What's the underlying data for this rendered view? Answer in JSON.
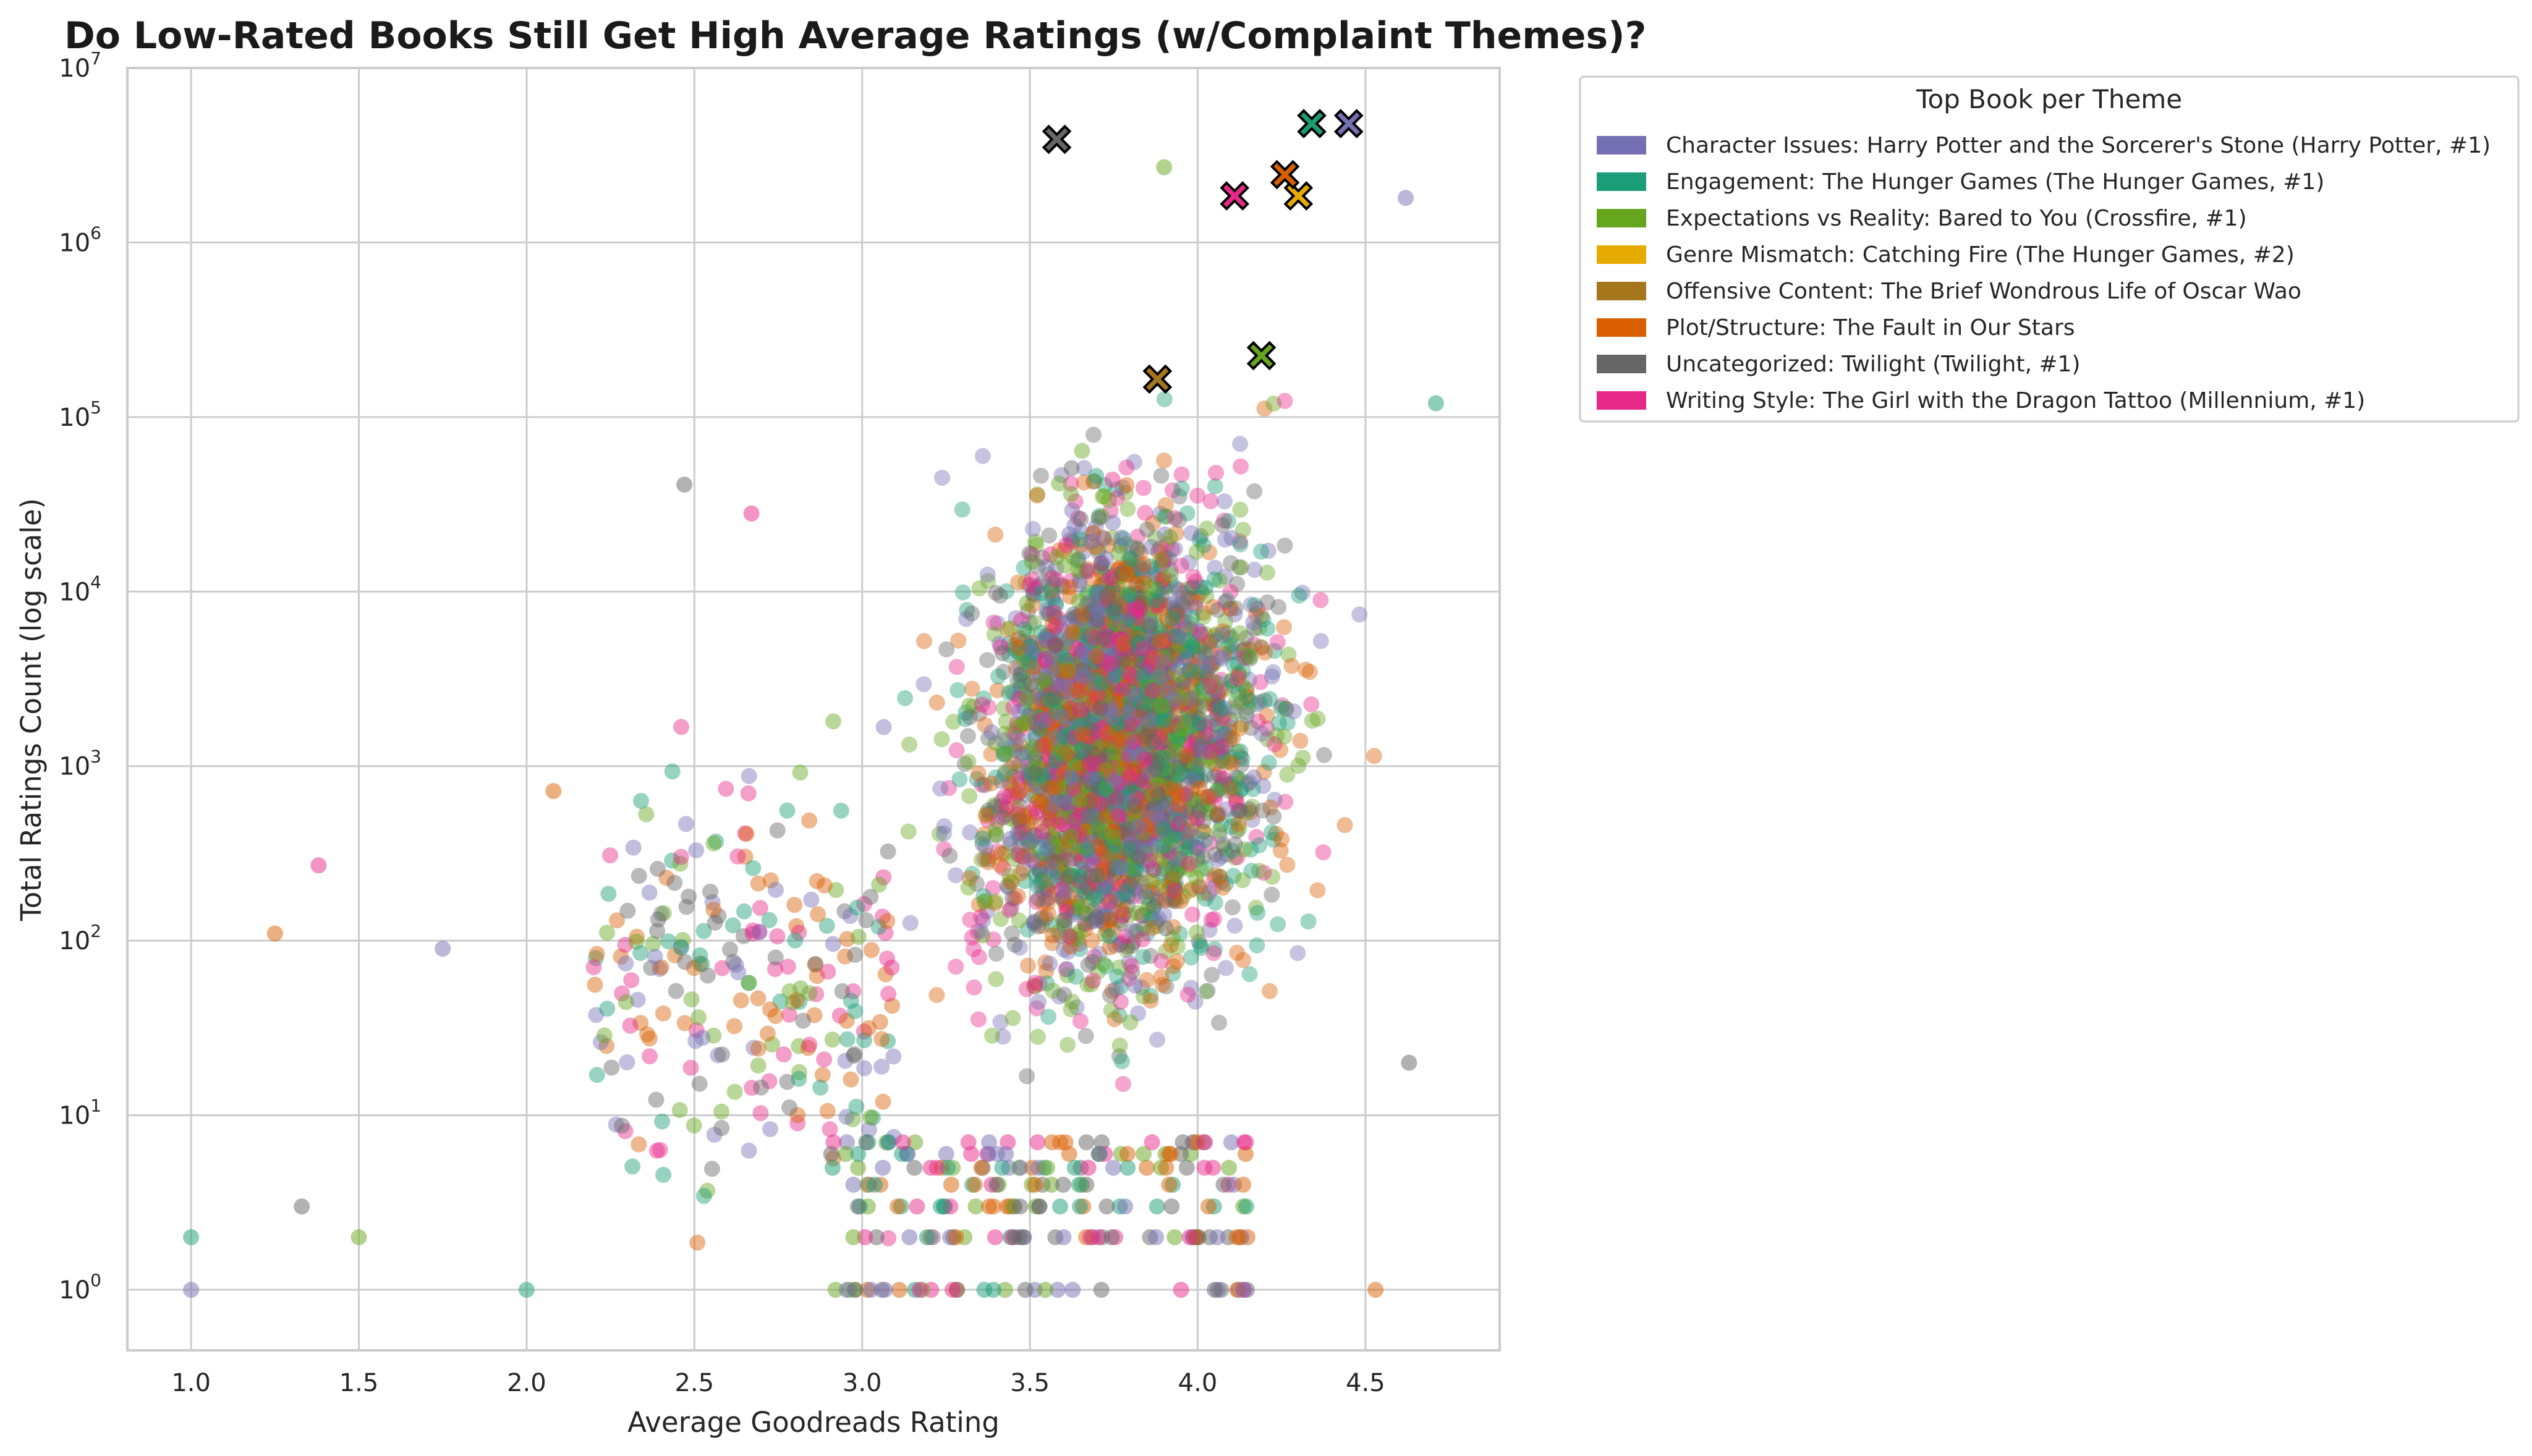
{
  "chart_data": {
    "type": "scatter",
    "title": "Do Low-Rated Books Still Get High Average Ratings (w/Complaint Themes)?",
    "xlabel": "Average Goodreads Rating",
    "ylabel": "Total Ratings Count (log scale)",
    "xlim": [
      0.81,
      4.9
    ],
    "ylim": [
      0.45,
      10000000
    ],
    "y_scale": "log",
    "grid": true,
    "x_ticks": [
      "1.0",
      "1.5",
      "2.0",
      "2.5",
      "3.0",
      "3.5",
      "4.0",
      "4.5"
    ],
    "y_ticks": [
      {
        "base": "10",
        "exp": "0"
      },
      {
        "base": "10",
        "exp": "1"
      },
      {
        "base": "10",
        "exp": "2"
      },
      {
        "base": "10",
        "exp": "3"
      },
      {
        "base": "10",
        "exp": "4"
      },
      {
        "base": "10",
        "exp": "5"
      },
      {
        "base": "10",
        "exp": "6"
      },
      {
        "base": "10",
        "exp": "7"
      }
    ],
    "legend": {
      "title": "Top Book per Theme",
      "placement": "outside upper right"
    },
    "series": [
      {
        "name": "Character Issues: Harry Potter and the Sorcerer's Stone (Harry Potter, #1)",
        "color": "#7570b3",
        "highlight": {
          "x": 4.45,
          "y": 4800000
        }
      },
      {
        "name": "Engagement: The Hunger Games (The Hunger Games, #1)",
        "color": "#1b9e77",
        "highlight": {
          "x": 4.34,
          "y": 4800000
        }
      },
      {
        "name": "Expectations vs Reality: Bared to You (Crossfire, #1)",
        "color": "#66a61e",
        "highlight": {
          "x": 4.19,
          "y": 225000
        }
      },
      {
        "name": "Genre Mismatch: Catching Fire (The Hunger Games, #2)",
        "color": "#e6ab02",
        "highlight": {
          "x": 4.3,
          "y": 1850000
        }
      },
      {
        "name": "Offensive Content: The Brief Wondrous Life of Oscar Wao",
        "color": "#a6761d",
        "highlight": {
          "x": 3.88,
          "y": 165000
        }
      },
      {
        "name": "Plot/Structure: The Fault in Our Stars",
        "color": "#d95f02",
        "highlight": {
          "x": 4.26,
          "y": 2450000
        }
      },
      {
        "name": "Uncategorized: Twilight (Twilight, #1)",
        "color": "#666666",
        "highlight": {
          "x": 3.58,
          "y": 3900000
        }
      },
      {
        "name": "Writing Style: The Girl with the Dragon Tattoo (Millennium, #1)",
        "color": "#e7298a",
        "highlight": {
          "x": 4.11,
          "y": 1850000
        }
      }
    ],
    "scatter_colors": [
      "#7570b3",
      "#1b9e77",
      "#d95f02",
      "#666666",
      "#e7298a",
      "#66a61e"
    ],
    "scatter_points_sample": [
      {
        "x": 1.0,
        "y": 1
      },
      {
        "x": 1.0,
        "y": 2
      },
      {
        "x": 1.25,
        "y": 110
      },
      {
        "x": 1.33,
        "y": 3
      },
      {
        "x": 1.38,
        "y": 270
      },
      {
        "x": 1.5,
        "y": 2
      },
      {
        "x": 1.75,
        "y": 90
      },
      {
        "x": 2.0,
        "y": 1
      },
      {
        "x": 2.08,
        "y": 720
      },
      {
        "x": 2.47,
        "y": 41000
      },
      {
        "x": 2.67,
        "y": 28000
      },
      {
        "x": 3.9,
        "y": 2700000
      },
      {
        "x": 4.62,
        "y": 1800000
      },
      {
        "x": 4.71,
        "y": 120000
      },
      {
        "x": 4.53,
        "y": 1
      },
      {
        "x": 4.63,
        "y": 20
      }
    ]
  }
}
